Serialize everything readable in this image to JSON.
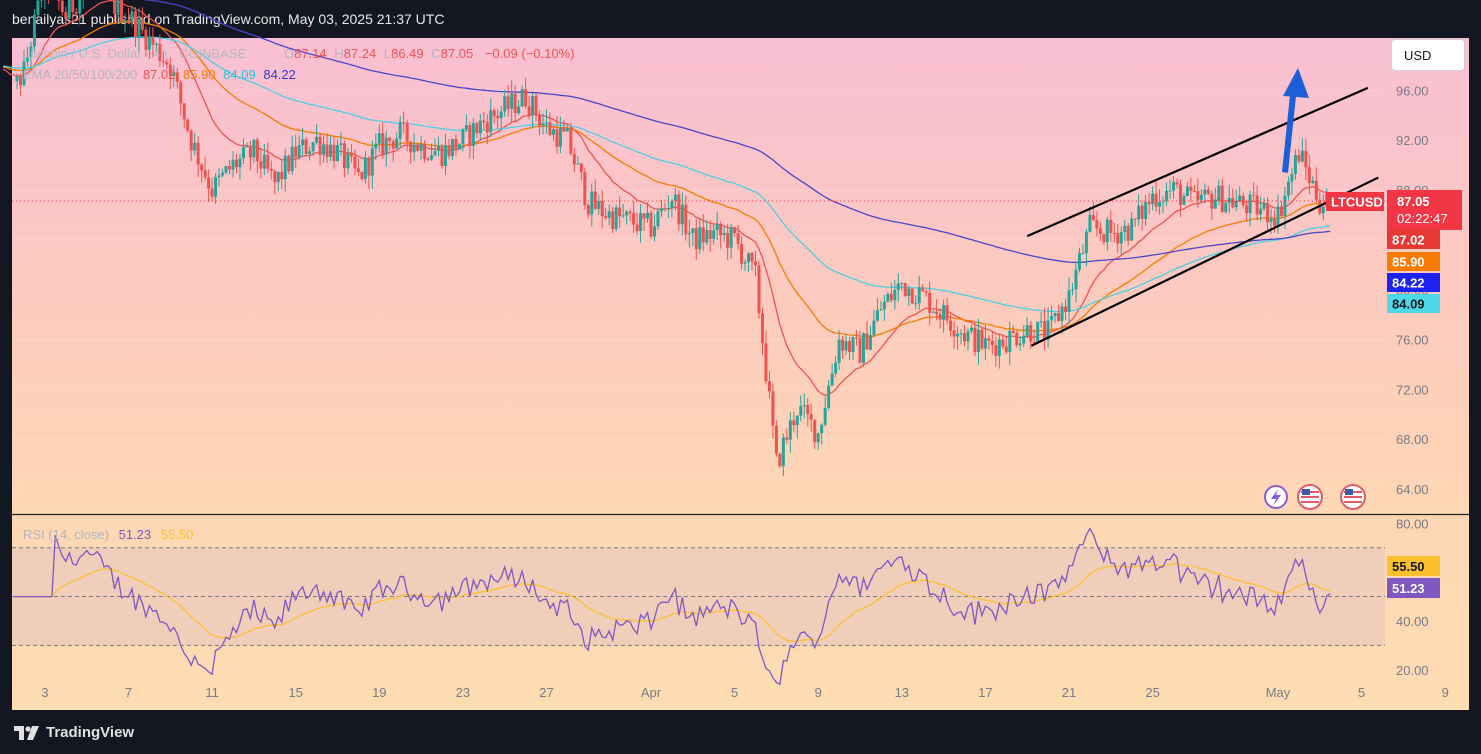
{
  "header": {
    "publisher_line": "benailyas21 published on TradingView.com, May 03, 2025 21:37 UTC"
  },
  "footer": {
    "brand": "TradingView"
  },
  "currency_button": "USD",
  "legend": {
    "symbol": "Litecoin / U.S. Dollar · 4h · COINBASE",
    "o_label": "O",
    "o": "87.14",
    "h_label": "H",
    "h": "87.24",
    "l_label": "L",
    "l": "86.49",
    "c_label": "C",
    "c": "87.05",
    "change": "−0.09 (−0.10%)",
    "ema_label": "EMA 20/50/100/200",
    "ema20": "87.02",
    "ema50": "85.90",
    "ema100": "84.09",
    "ema200": "84.22",
    "rsi_label": "RSI (14, close)",
    "rsi": "51.23",
    "rsi_ma": "55.50"
  },
  "price_badges": {
    "symbol": "LTCUSD",
    "last": "87.05",
    "countdown": "02:22:47",
    "ema20": "87.02",
    "ema50": "85.90",
    "ema200": "84.22",
    "ema100": "84.09",
    "rsi_ma": "55.50",
    "rsi": "51.23"
  },
  "colors": {
    "up": "#26a69a",
    "down": "#ef5350",
    "ema20": "#ef5350",
    "ema50": "#f57c00",
    "ema100": "#4dd0e1",
    "ema200": "#4a45c8",
    "rsi": "#7e57c2",
    "rsi_ma": "#fbc02d",
    "ltc_badge": "#f23645",
    "arrow": "#1e5fd8"
  },
  "chart_data": [
    {
      "type": "candlestick",
      "title": "Litecoin / U.S. Dollar · 4h · COINBASE",
      "interval": "4h",
      "x_ticks": [
        "3",
        "7",
        "11",
        "15",
        "19",
        "23",
        "27",
        "Apr",
        "5",
        "9",
        "13",
        "17",
        "21",
        "25",
        "May",
        "5",
        "9"
      ],
      "y_ticks": [
        64.0,
        68.0,
        72.0,
        76.0,
        80.0,
        84.0,
        88.0,
        92.0,
        96.0
      ],
      "ylim": [
        62.0,
        100.2
      ],
      "last_price": 87.05,
      "price_path_approx": [
        {
          "date": "Mar 1",
          "close": 94.5
        },
        {
          "date": "Mar 2",
          "close": 97.5
        },
        {
          "date": "Mar 3",
          "close": 105.0
        },
        {
          "date": "Mar 4",
          "close": 102.0
        },
        {
          "date": "Mar 5",
          "close": 104.5
        },
        {
          "date": "Mar 7",
          "close": 102.0
        },
        {
          "date": "Mar 9",
          "close": 98.0
        },
        {
          "date": "Mar 10",
          "close": 92.0
        },
        {
          "date": "Mar 11",
          "close": 88.0
        },
        {
          "date": "Mar 12",
          "close": 90.0
        },
        {
          "date": "Mar 13",
          "close": 91.0
        },
        {
          "date": "Mar 14",
          "close": 88.5
        },
        {
          "date": "Mar 15",
          "close": 91.0
        },
        {
          "date": "Mar 16",
          "close": 92.0
        },
        {
          "date": "Mar 17",
          "close": 91.0
        },
        {
          "date": "Mar 18",
          "close": 89.0
        },
        {
          "date": "Mar 19",
          "close": 91.5
        },
        {
          "date": "Mar 20",
          "close": 92.5
        },
        {
          "date": "Mar 21",
          "close": 91.5
        },
        {
          "date": "Mar 22",
          "close": 91.0
        },
        {
          "date": "Mar 23",
          "close": 92.0
        },
        {
          "date": "Mar 24",
          "close": 93.5
        },
        {
          "date": "Mar 25",
          "close": 94.5
        },
        {
          "date": "Mar 26",
          "close": 95.5
        },
        {
          "date": "Mar 27",
          "close": 93.0
        },
        {
          "date": "Mar 28",
          "close": 92.0
        },
        {
          "date": "Mar 29",
          "close": 87.0
        },
        {
          "date": "Mar 30",
          "close": 86.0
        },
        {
          "date": "Mar 31",
          "close": 85.5
        },
        {
          "date": "Apr 1",
          "close": 85.0
        },
        {
          "date": "Apr 2",
          "close": 87.5
        },
        {
          "date": "Apr 3",
          "close": 84.0
        },
        {
          "date": "Apr 4",
          "close": 84.5
        },
        {
          "date": "Apr 5",
          "close": 84.0
        },
        {
          "date": "Apr 6",
          "close": 81.0
        },
        {
          "date": "Apr 7",
          "close": 66.0
        },
        {
          "date": "Apr 8",
          "close": 70.5
        },
        {
          "date": "Apr 9",
          "close": 68.5
        },
        {
          "date": "Apr 10",
          "close": 76.0
        },
        {
          "date": "Apr 11",
          "close": 75.0
        },
        {
          "date": "Apr 12",
          "close": 78.5
        },
        {
          "date": "Apr 13",
          "close": 80.5
        },
        {
          "date": "Apr 14",
          "close": 79.5
        },
        {
          "date": "Apr 15",
          "close": 78.0
        },
        {
          "date": "Apr 16",
          "close": 76.5
        },
        {
          "date": "Apr 17",
          "close": 75.5
        },
        {
          "date": "Apr 18",
          "close": 76.0
        },
        {
          "date": "Apr 19",
          "close": 76.8
        },
        {
          "date": "Apr 20",
          "close": 76.5
        },
        {
          "date": "Apr 21",
          "close": 79.5
        },
        {
          "date": "Apr 22",
          "close": 85.0
        },
        {
          "date": "Apr 23",
          "close": 84.5
        },
        {
          "date": "Apr 24",
          "close": 85.0
        },
        {
          "date": "Apr 25",
          "close": 87.5
        },
        {
          "date": "Apr 26",
          "close": 88.0
        },
        {
          "date": "Apr 27",
          "close": 87.0
        },
        {
          "date": "Apr 28",
          "close": 87.5
        },
        {
          "date": "Apr 29",
          "close": 87.0
        },
        {
          "date": "Apr 30",
          "close": 86.5
        },
        {
          "date": "May 1",
          "close": 86.0
        },
        {
          "date": "May 2",
          "close": 91.0
        },
        {
          "date": "May 3",
          "close": 87.05
        }
      ],
      "series": [
        {
          "name": "EMA 20",
          "last": 87.02
        },
        {
          "name": "EMA 50",
          "last": 85.9
        },
        {
          "name": "EMA 100",
          "last": 84.09
        },
        {
          "name": "EMA 200",
          "last": 84.22
        }
      ],
      "annotations": [
        "ascending channel",
        "blue arrow up"
      ]
    },
    {
      "type": "line",
      "title": "RSI (14, close)",
      "y_ticks": [
        20.0,
        40.0,
        80.0
      ],
      "ylim": [
        15,
        83
      ],
      "bands": [
        70,
        50,
        30
      ],
      "series": [
        {
          "name": "RSI",
          "last": 51.23
        },
        {
          "name": "RSI MA",
          "last": 55.5
        }
      ]
    }
  ]
}
